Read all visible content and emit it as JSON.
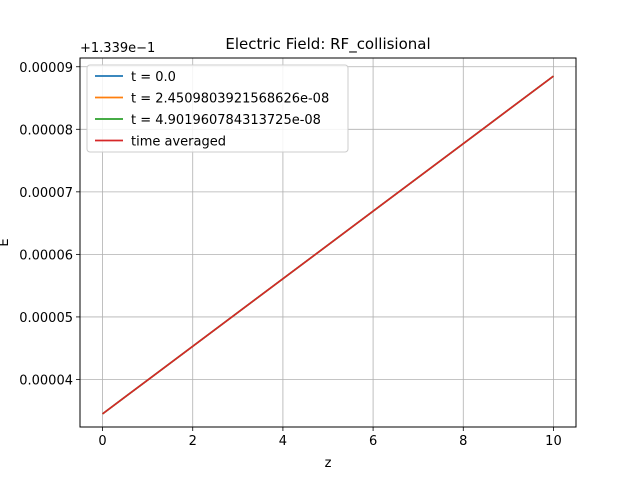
{
  "chart_data": {
    "type": "line",
    "title": "Electric Field: RF_collisional",
    "xlabel": "z",
    "ylabel": "E",
    "y_offset_label": "+1.339e−1",
    "xlim": [
      -0.5,
      10.5
    ],
    "ylim": [
      3.24e-05,
      9.14e-05
    ],
    "x_ticks": [
      0,
      2,
      4,
      6,
      8,
      10
    ],
    "x_tick_labels": [
      "0",
      "2",
      "4",
      "6",
      "8",
      "10"
    ],
    "y_ticks": [
      4e-05,
      5e-05,
      6e-05,
      7e-05,
      8e-05,
      9e-05
    ],
    "y_tick_labels": [
      "0.00004",
      "0.00005",
      "0.00006",
      "0.00007",
      "0.00008",
      "0.00009"
    ],
    "grid": true,
    "legend_position": "upper-left",
    "x": [
      0,
      10
    ],
    "series": [
      {
        "name": "t = 0.0",
        "color": "#1f77b4",
        "values": [
          3.45e-05,
          8.85e-05
        ]
      },
      {
        "name": "t = 2.4509803921568626e-08",
        "color": "#ff7f0e",
        "values": [
          3.45e-05,
          8.85e-05
        ]
      },
      {
        "name": "t = 4.901960784313725e-08",
        "color": "#2ca02c",
        "values": [
          3.45e-05,
          8.85e-05
        ]
      },
      {
        "name": "time averaged",
        "color": "#d62728",
        "values": [
          3.45e-05,
          8.85e-05
        ]
      }
    ]
  }
}
